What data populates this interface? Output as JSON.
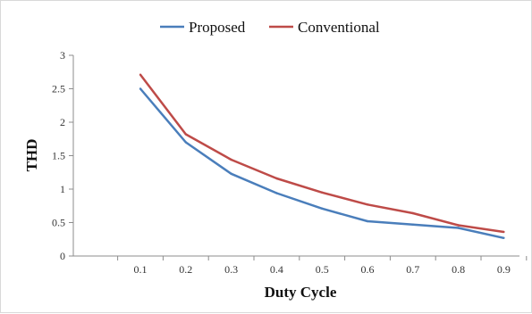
{
  "chart_data": {
    "type": "line",
    "x": [
      0.1,
      0.2,
      0.3,
      0.4,
      0.5,
      0.6,
      0.7,
      0.8,
      0.9
    ],
    "series": [
      {
        "name": "Proposed",
        "color": "#4a7ebb",
        "values": [
          2.5,
          1.7,
          1.23,
          0.94,
          0.71,
          0.52,
          0.47,
          0.42,
          0.27
        ]
      },
      {
        "name": "Conventional",
        "color": "#be4b48",
        "values": [
          2.71,
          1.82,
          1.44,
          1.16,
          0.95,
          0.77,
          0.64,
          0.46,
          0.36
        ]
      }
    ],
    "xlabel": "Duty Cycle",
    "ylabel": "THD",
    "ylim": [
      0,
      3
    ],
    "yticks": [
      "0",
      "0.5",
      "1",
      "1.5",
      "2",
      "2.5",
      "3"
    ],
    "xticks": [
      "0.1",
      "0.2",
      "0.3",
      "0.4",
      "0.5",
      "0.6",
      "0.7",
      "0.8",
      "0.9"
    ],
    "grid": false,
    "legend_position": "top"
  }
}
